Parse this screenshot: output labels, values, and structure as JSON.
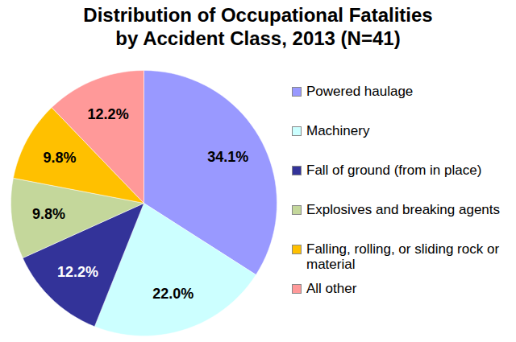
{
  "chart_data": {
    "type": "pie",
    "title": "Distribution of Occupational Fatalities by Accident Class, 2013 (N=41)",
    "categories": [
      "Powered haulage",
      "Machinery",
      "Fall of ground (from in place)",
      "Explosives and breaking agents",
      "Falling, rolling, or sliding rock or material",
      "All other"
    ],
    "values": [
      34.1,
      22.0,
      12.2,
      9.8,
      9.8,
      12.2
    ],
    "value_labels": [
      "34.1%",
      "22.0%",
      "12.2%",
      "9.8%",
      "9.8%",
      "12.2%"
    ],
    "colors": [
      "#9999ff",
      "#ccffff",
      "#333399",
      "#c4d79b",
      "#ffc000",
      "#ff9999"
    ],
    "data_labels": true,
    "legend": "right"
  }
}
